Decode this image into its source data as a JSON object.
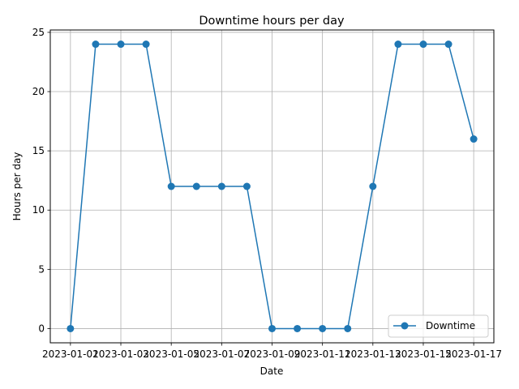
{
  "chart_data": {
    "type": "line",
    "title": "Downtime hours per day",
    "xlabel": "Date",
    "ylabel": "Hours per day",
    "x": [
      "2023-01-01",
      "2023-01-02",
      "2023-01-03",
      "2023-01-04",
      "2023-01-05",
      "2023-01-06",
      "2023-01-07",
      "2023-01-08",
      "2023-01-09",
      "2023-01-10",
      "2023-01-11",
      "2023-01-12",
      "2023-01-13",
      "2023-01-14",
      "2023-01-15",
      "2023-01-16",
      "2023-01-17"
    ],
    "xticks": [
      "2023-01-01",
      "2023-01-03",
      "2023-01-05",
      "2023-01-07",
      "2023-01-09",
      "2023-01-11",
      "2023-01-13",
      "2023-01-15",
      "2023-01-17"
    ],
    "yticks": [
      0,
      5,
      10,
      15,
      20,
      25
    ],
    "ylim": [
      -1.2,
      25.2
    ],
    "grid": true,
    "legend_position": "bottom-right",
    "color": "#1f77b4",
    "series": [
      {
        "name": "Downtime",
        "values": [
          0,
          24,
          24,
          24,
          12,
          12,
          12,
          12,
          0,
          0,
          0,
          0,
          12,
          24,
          24,
          24,
          16
        ]
      }
    ]
  }
}
